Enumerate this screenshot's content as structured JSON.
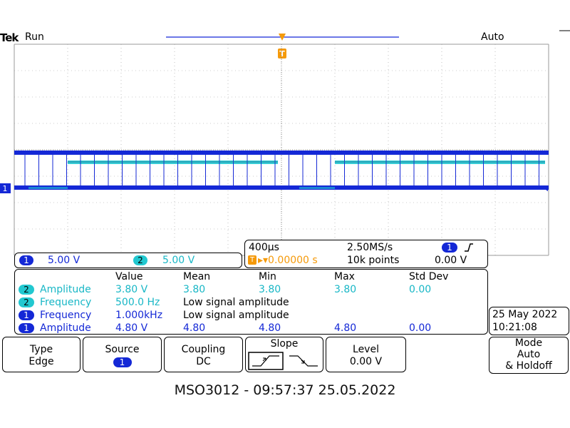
{
  "header": {
    "brand": "Tek",
    "run_state": "Run",
    "trigger_mode": "Auto",
    "trigger_marker": "T"
  },
  "channel_marker": "1",
  "colors": {
    "ch1": "#1428d6",
    "ch2": "#22c8d0",
    "trigger": "#f59a0a",
    "grid": "#9a9a9a"
  },
  "scale_bar": {
    "ch1_badge": "1",
    "ch1_scale": "5.00 V",
    "ch2_badge": "2",
    "ch2_scale": "5.00 V"
  },
  "timebase": {
    "time_per_div": "400µs",
    "sample_rate": "2.50MS/s",
    "trigger_badge": "T",
    "trigger_pos": "▸▾0.00000 s",
    "record_length": "10k points",
    "trig_source_badge": "1",
    "trig_slope_icon": "rising-edge-icon",
    "trig_level": "0.00 V"
  },
  "measurements": {
    "headers": [
      "Value",
      "Mean",
      "Min",
      "Max",
      "Std Dev"
    ],
    "rows": [
      {
        "ch": "2",
        "name": "Amplitude",
        "value": "3.80 V",
        "mean": "3.80",
        "min": "3.80",
        "max": "3.80",
        "std": "0.00"
      },
      {
        "ch": "2",
        "name": "Frequency",
        "value": "500.0 Hz",
        "note": "Low signal amplitude"
      },
      {
        "ch": "1",
        "name": "Frequency",
        "value": "1.000kHz",
        "note": "Low signal amplitude"
      },
      {
        "ch": "1",
        "name": "Amplitude",
        "value": "4.80 V",
        "mean": "4.80",
        "min": "4.80",
        "max": "4.80",
        "std": "0.00"
      }
    ]
  },
  "datetime": {
    "date": "25 May 2022",
    "time": "10:21:08"
  },
  "menu": {
    "type": {
      "title": "Type",
      "value": "Edge"
    },
    "source": {
      "title": "Source",
      "value": "1"
    },
    "coupling": {
      "title": "Coupling",
      "value": "DC"
    },
    "slope": {
      "title": "Slope"
    },
    "level": {
      "title": "Level",
      "value": "0.00 V"
    },
    "mode": {
      "title": "Mode",
      "value": "Auto",
      "value2": "& Holdoff"
    }
  },
  "footer": "MSO3012 - 09:57:37   25.05.2022"
}
